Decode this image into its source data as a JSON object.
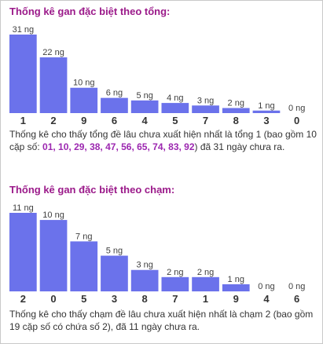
{
  "colors": {
    "bar": "#6b72eb",
    "title": "#9b1a8a",
    "value": "#3f3f3f",
    "highlight": "#9c27b0",
    "text": "#333333"
  },
  "chart_data": [
    {
      "type": "bar",
      "title": "Thống kê gan đặc biệt theo tổng:",
      "categories": [
        "1",
        "2",
        "9",
        "6",
        "4",
        "5",
        "7",
        "8",
        "3",
        "0"
      ],
      "values": [
        31,
        22,
        10,
        6,
        5,
        4,
        3,
        2,
        1,
        0
      ],
      "labels": [
        "31 ng",
        "22 ng",
        "10 ng",
        "6 ng",
        "5 ng",
        "4 ng",
        "3 ng",
        "2 ng",
        "1 ng",
        "0 ng"
      ],
      "ylim": [
        0,
        31
      ]
    },
    {
      "type": "bar",
      "title": "Thống kê gan đặc biệt theo chạm:",
      "categories": [
        "2",
        "0",
        "5",
        "3",
        "8",
        "7",
        "1",
        "9",
        "4",
        "6"
      ],
      "values": [
        11,
        10,
        7,
        5,
        3,
        2,
        2,
        1,
        0,
        0
      ],
      "labels": [
        "11 ng",
        "10 ng",
        "7 ng",
        "5 ng",
        "3 ng",
        "2 ng",
        "2 ng",
        "1 ng",
        "0 ng",
        "0 ng"
      ],
      "ylim": [
        0,
        11
      ]
    }
  ],
  "desc1": {
    "prefix": "Thống kê cho thấy tổng đề lâu chưa xuất hiện nhất là tổng 1 (bao gồm 10 cặp số: ",
    "numbers": "01, 10, 29, 38, 47, 56, 65, 74, 83, 92",
    "suffix": ") đã 31 ngày chưa ra."
  },
  "desc2": {
    "text": "Thống kê cho thấy chạm đề lâu chưa xuất hiện nhất là chạm 2 (bao gồm 19 cặp số có chứa số 2), đã 11 ngày chưa ra."
  }
}
